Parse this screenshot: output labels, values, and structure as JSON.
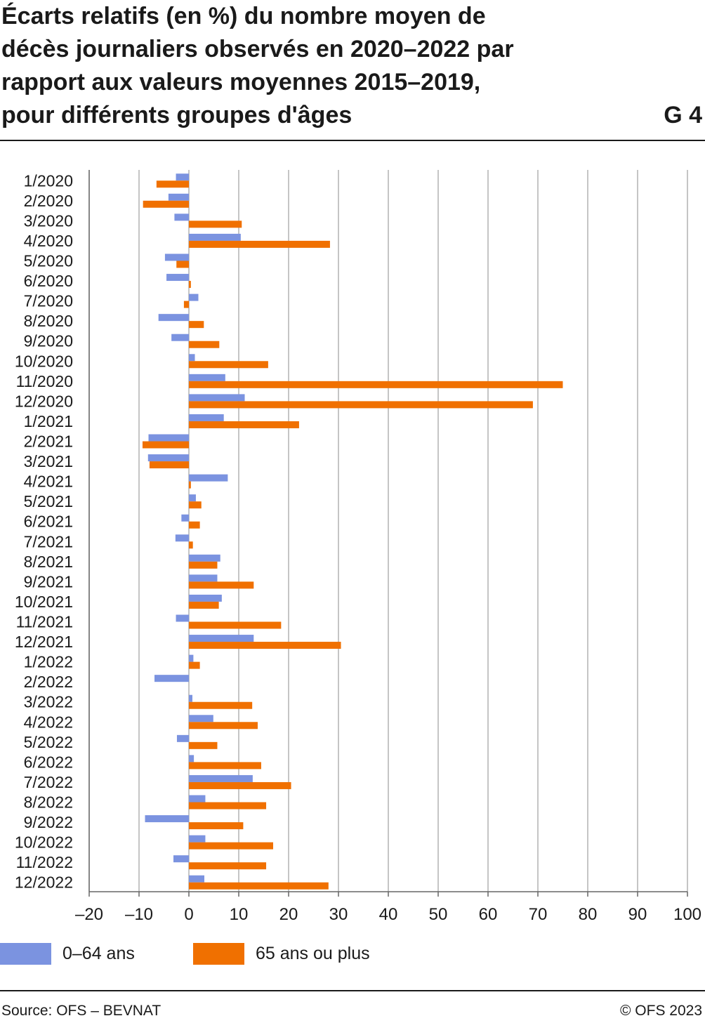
{
  "title": {
    "lines": [
      "Écarts relatifs (en %) du nombre moyen de",
      "décès journaliers observés en 2020–2022 par",
      "rapport aux valeurs moyennes 2015–2019,",
      "pour différents groupes d'âges"
    ],
    "number": "G 4"
  },
  "footer": {
    "source": "Source: OFS – BEVNAT",
    "copyright": "© OFS 2023"
  },
  "colors": {
    "series_0_64": "#7b93e0",
    "series_65plus": "#f07000",
    "grid": "#a6a6a6",
    "axis": "#666666"
  },
  "chart_data": {
    "type": "bar",
    "orientation": "horizontal",
    "title": "Écarts relatifs (en %) du nombre moyen de décès journaliers observés en 2020–2022 par rapport aux valeurs moyennes 2015–2019, pour différents groupes d'âges",
    "xlim": [
      -20,
      100
    ],
    "xticks": [
      -20,
      -10,
      0,
      10,
      20,
      30,
      40,
      50,
      60,
      70,
      80,
      90,
      100
    ],
    "xtick_labels": [
      "–20",
      "–10",
      "0",
      "10",
      "20",
      "30",
      "40",
      "50",
      "60",
      "70",
      "80",
      "90",
      "100"
    ],
    "grid": true,
    "legend_position": "bottom",
    "categories": [
      "1/2020",
      "2/2020",
      "3/2020",
      "4/2020",
      "5/2020",
      "6/2020",
      "7/2020",
      "8/2020",
      "9/2020",
      "10/2020",
      "11/2020",
      "12/2020",
      "1/2021",
      "2/2021",
      "3/2021",
      "4/2021",
      "5/2021",
      "6/2021",
      "7/2021",
      "8/2021",
      "9/2021",
      "10/2021",
      "11/2021",
      "12/2021",
      "1/2022",
      "2/2022",
      "3/2022",
      "4/2022",
      "5/2022",
      "6/2022",
      "7/2022",
      "8/2022",
      "9/2022",
      "10/2022",
      "11/2022",
      "12/2022"
    ],
    "series": [
      {
        "name": "0–64 ans",
        "values": [
          -2.6,
          -4.1,
          -2.9,
          10.4,
          -4.8,
          -4.5,
          1.9,
          -6.1,
          -3.5,
          1.2,
          7.3,
          11.2,
          7.0,
          -8.1,
          -8.2,
          7.8,
          1.4,
          -1.5,
          -2.7,
          6.3,
          5.7,
          6.6,
          -2.6,
          13.0,
          0.9,
          -6.9,
          0.7,
          4.9,
          -2.4,
          1.0,
          12.8,
          3.3,
          -8.8,
          3.3,
          -3.1,
          3.1
        ]
      },
      {
        "name": "65 ans ou plus",
        "values": [
          -6.5,
          -9.2,
          10.6,
          28.3,
          -2.5,
          0.4,
          -1.0,
          3.0,
          6.1,
          15.9,
          75.0,
          69.0,
          22.1,
          -9.3,
          -7.9,
          0.4,
          2.5,
          2.2,
          0.8,
          5.7,
          13.0,
          6.0,
          18.5,
          30.5,
          2.2,
          0.0,
          12.7,
          13.8,
          5.7,
          14.5,
          20.5,
          15.5,
          10.9,
          16.9,
          15.5,
          28.0
        ]
      }
    ]
  }
}
